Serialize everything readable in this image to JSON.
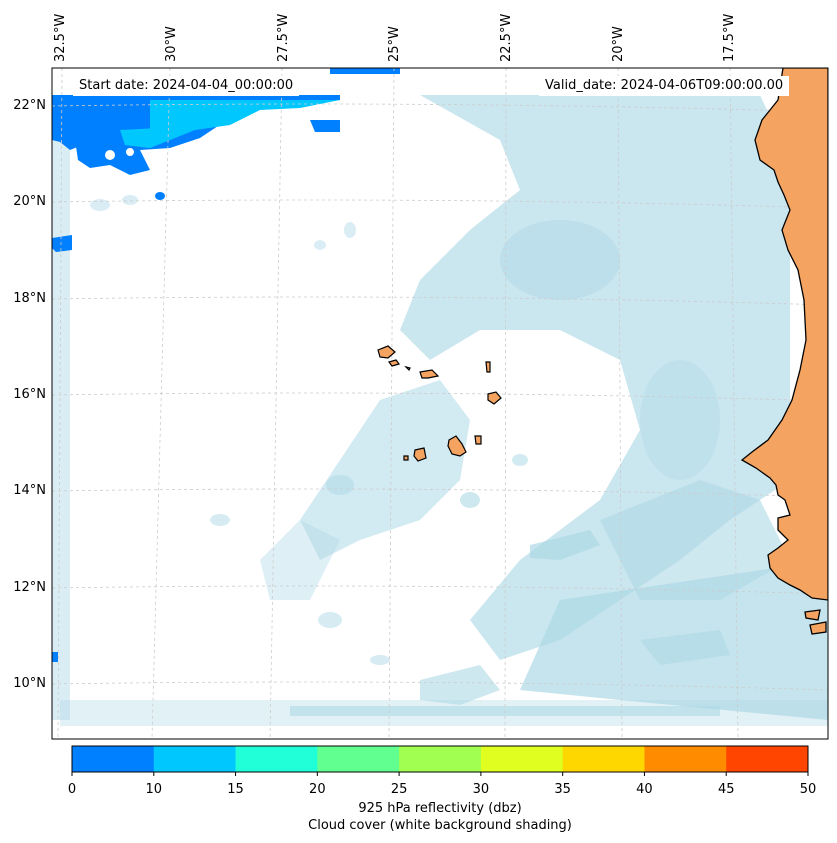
{
  "header": {
    "start_date": "Start date: 2024-04-04_00:00:00",
    "valid_date": "Valid_date: 2024-04-06T09:00:00.00"
  },
  "map": {
    "longitude_labels": [
      "32.5°W",
      "30°W",
      "27.5°W",
      "25°W",
      "22.5°W",
      "20°W",
      "17.5°W"
    ],
    "latitude_labels": [
      "22°N",
      "20°N",
      "18°N",
      "16°N",
      "14°N",
      "12°N",
      "10°N"
    ],
    "colors": {
      "land": "#f4a460",
      "cloud": "#add8e6",
      "ocean": "#ffffff",
      "coastline": "#000000"
    },
    "regions": [
      "West African coast",
      "Cape Verde Islands"
    ]
  },
  "colorbar": {
    "ticks": [
      "0",
      "10",
      "15",
      "20",
      "25",
      "30",
      "35",
      "40",
      "45",
      "50"
    ],
    "colors": [
      "#0080ff",
      "#00c8ff",
      "#20ffd8",
      "#60ff90",
      "#a0ff50",
      "#e0ff20",
      "#ffd700",
      "#ff8c00",
      "#ff4500"
    ],
    "label_line1": "925 hPa reflectivity (dbz)",
    "label_line2": "Cloud cover (white background shading)"
  }
}
